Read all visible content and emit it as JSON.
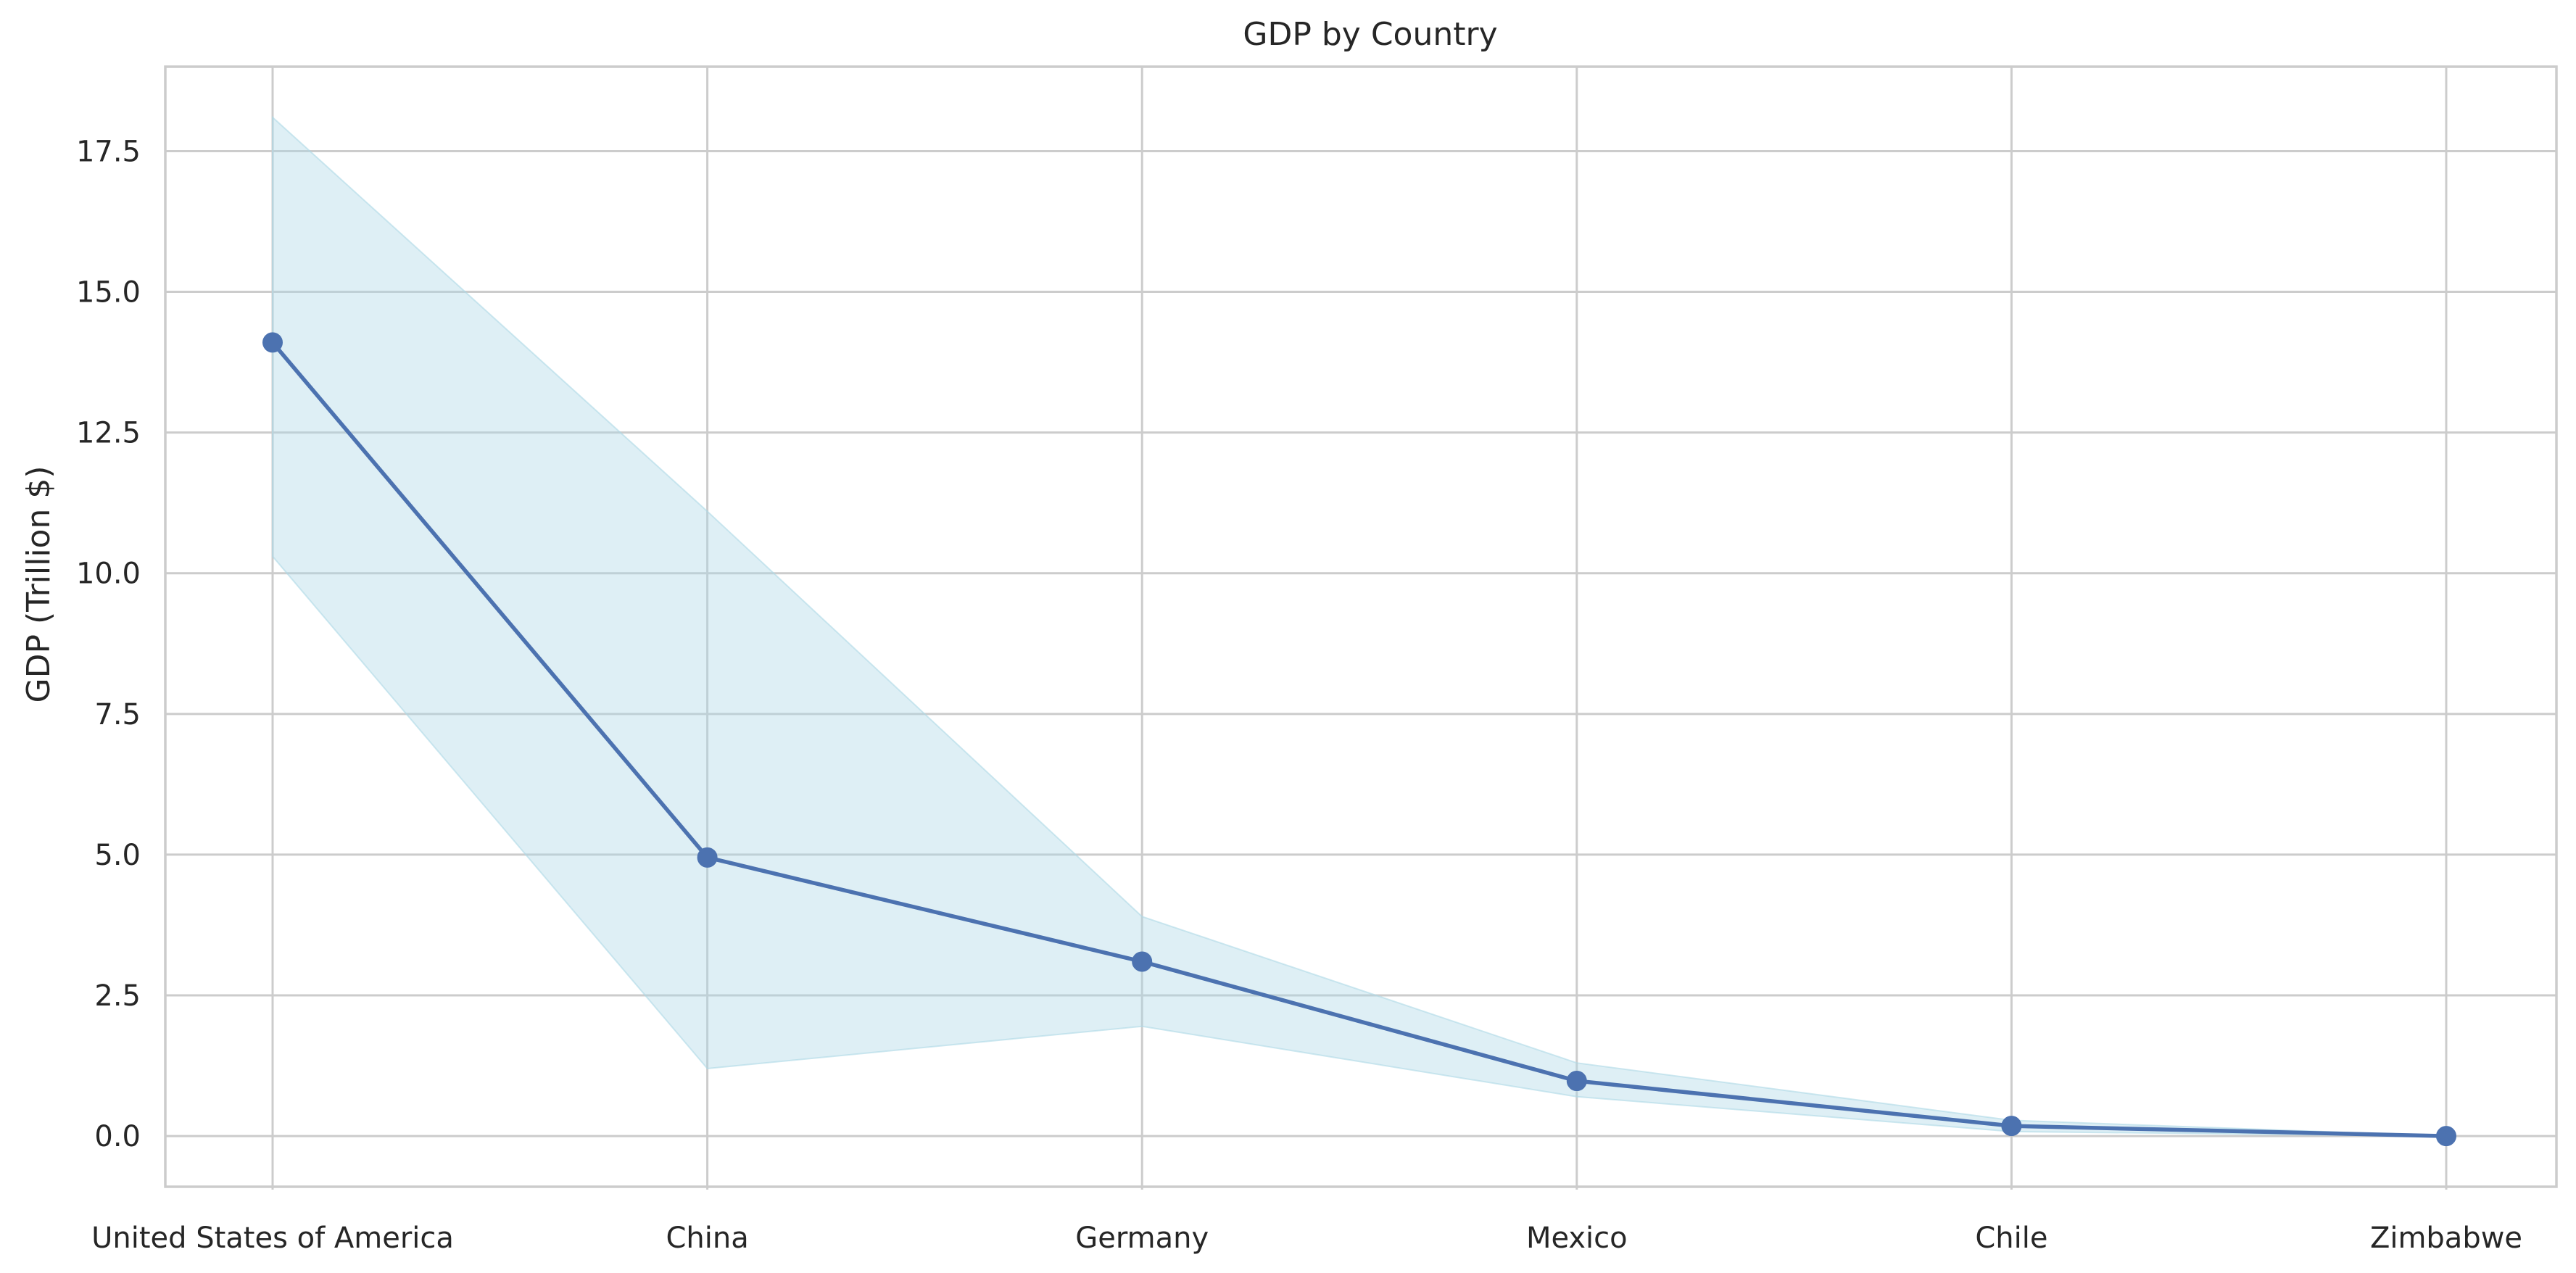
{
  "chart_data": {
    "type": "line",
    "title": "GDP by Country",
    "xlabel": "",
    "ylabel": "GDP (Trillion $)",
    "categories": [
      "United States of America",
      "China",
      "Germany",
      "Mexico",
      "Chile",
      "Zimbabwe"
    ],
    "series": [
      {
        "values": [
          14.1,
          4.95,
          3.1,
          0.98,
          0.18,
          0.0
        ],
        "color": "#4c72b0",
        "marker": "circle"
      }
    ],
    "band": {
      "lower": [
        10.3,
        1.2,
        1.95,
        0.7,
        0.08,
        0.0
      ],
      "upper": [
        18.1,
        11.1,
        3.9,
        1.3,
        0.28,
        0.0
      ],
      "color": "#add8e6",
      "opacity": 0.4
    },
    "ylim": [
      -0.9,
      19.0
    ],
    "yticks": [
      0.0,
      2.5,
      5.0,
      7.5,
      10.0,
      12.5,
      15.0,
      17.5
    ],
    "ytick_labels": [
      "0.0",
      "2.5",
      "5.0",
      "7.5",
      "10.0",
      "12.5",
      "15.0",
      "17.5"
    ],
    "grid": true,
    "style": "whitegrid"
  }
}
